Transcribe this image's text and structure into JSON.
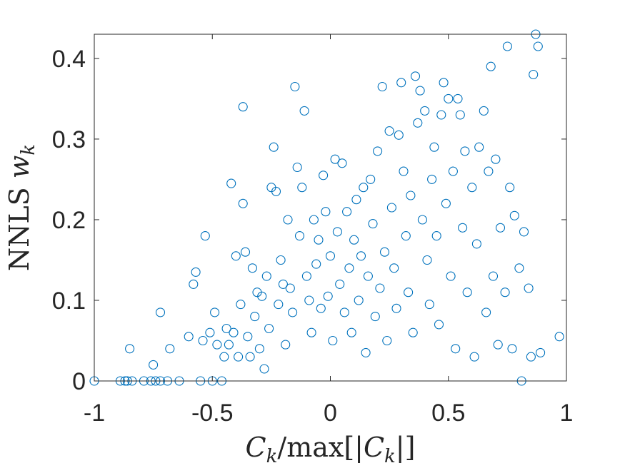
{
  "chart_data": {
    "type": "scatter",
    "title": "",
    "xlabel_parts": [
      "C",
      "k",
      "/max[|",
      "C",
      "k",
      "|]"
    ],
    "ylabel_parts": [
      "NNLS ",
      "w",
      "k"
    ],
    "xlim": [
      -1,
      1
    ],
    "ylim": [
      0,
      0.43
    ],
    "xticks": [
      -1,
      -0.5,
      0,
      0.5,
      1
    ],
    "xtick_labels": [
      "-1",
      "-0.5",
      "0",
      "0.5",
      "1"
    ],
    "yticks": [
      0,
      0.1,
      0.2,
      0.3,
      0.4
    ],
    "ytick_labels": [
      "0",
      "0.1",
      "0.2",
      "0.3",
      "0.4"
    ],
    "grid": false,
    "legend": "none",
    "marker": "open-circle",
    "marker_color": "#0072BD",
    "axis_color": "#262626",
    "series": [
      {
        "points": [
          [
            -1.0,
            0.0
          ],
          [
            -0.89,
            0.0
          ],
          [
            -0.87,
            0.0
          ],
          [
            -0.86,
            0.0
          ],
          [
            -0.85,
            0.04
          ],
          [
            -0.84,
            0.0
          ],
          [
            -0.79,
            0.0
          ],
          [
            -0.76,
            0.0
          ],
          [
            -0.75,
            0.02
          ],
          [
            -0.74,
            0.0
          ],
          [
            -0.72,
            0.0
          ],
          [
            -0.72,
            0.085
          ],
          [
            -0.69,
            0.0
          ],
          [
            -0.68,
            0.04
          ],
          [
            -0.64,
            0.0
          ],
          [
            -0.6,
            0.055
          ],
          [
            -0.58,
            0.12
          ],
          [
            -0.57,
            0.135
          ],
          [
            -0.55,
            0.0
          ],
          [
            -0.54,
            0.05
          ],
          [
            -0.53,
            0.18
          ],
          [
            -0.51,
            0.06
          ],
          [
            -0.5,
            0.0
          ],
          [
            -0.49,
            0.085
          ],
          [
            -0.48,
            0.045
          ],
          [
            -0.46,
            0.0
          ],
          [
            -0.45,
            0.03
          ],
          [
            -0.44,
            0.065
          ],
          [
            -0.43,
            0.045
          ],
          [
            -0.42,
            0.245
          ],
          [
            -0.41,
            0.06
          ],
          [
            -0.4,
            0.155
          ],
          [
            -0.39,
            0.03
          ],
          [
            -0.38,
            0.095
          ],
          [
            -0.37,
            0.34
          ],
          [
            -0.37,
            0.22
          ],
          [
            -0.36,
            0.16
          ],
          [
            -0.35,
            0.055
          ],
          [
            -0.34,
            0.03
          ],
          [
            -0.33,
            0.14
          ],
          [
            -0.32,
            0.08
          ],
          [
            -0.31,
            0.11
          ],
          [
            -0.3,
            0.04
          ],
          [
            -0.29,
            0.105
          ],
          [
            -0.28,
            0.015
          ],
          [
            -0.27,
            0.13
          ],
          [
            -0.26,
            0.065
          ],
          [
            -0.25,
            0.24
          ],
          [
            -0.24,
            0.29
          ],
          [
            -0.23,
            0.235
          ],
          [
            -0.22,
            0.095
          ],
          [
            -0.21,
            0.15
          ],
          [
            -0.2,
            0.12
          ],
          [
            -0.19,
            0.045
          ],
          [
            -0.18,
            0.2
          ],
          [
            -0.17,
            0.115
          ],
          [
            -0.16,
            0.085
          ],
          [
            -0.15,
            0.365
          ],
          [
            -0.14,
            0.265
          ],
          [
            -0.13,
            0.18
          ],
          [
            -0.12,
            0.24
          ],
          [
            -0.11,
            0.335
          ],
          [
            -0.1,
            0.13
          ],
          [
            -0.09,
            0.1
          ],
          [
            -0.08,
            0.06
          ],
          [
            -0.07,
            0.2
          ],
          [
            -0.06,
            0.145
          ],
          [
            -0.05,
            0.175
          ],
          [
            -0.04,
            0.09
          ],
          [
            -0.03,
            0.255
          ],
          [
            -0.02,
            0.21
          ],
          [
            -0.01,
            0.105
          ],
          [
            0.0,
            0.155
          ],
          [
            0.01,
            0.05
          ],
          [
            0.02,
            0.275
          ],
          [
            0.03,
            0.185
          ],
          [
            0.04,
            0.12
          ],
          [
            0.05,
            0.27
          ],
          [
            0.06,
            0.085
          ],
          [
            0.07,
            0.21
          ],
          [
            0.08,
            0.14
          ],
          [
            0.09,
            0.06
          ],
          [
            0.1,
            0.175
          ],
          [
            0.11,
            0.225
          ],
          [
            0.12,
            0.1
          ],
          [
            0.13,
            0.155
          ],
          [
            0.14,
            0.24
          ],
          [
            0.15,
            0.035
          ],
          [
            0.16,
            0.13
          ],
          [
            0.17,
            0.25
          ],
          [
            0.18,
            0.195
          ],
          [
            0.19,
            0.08
          ],
          [
            0.2,
            0.285
          ],
          [
            0.21,
            0.115
          ],
          [
            0.22,
            0.365
          ],
          [
            0.23,
            0.16
          ],
          [
            0.24,
            0.05
          ],
          [
            0.25,
            0.31
          ],
          [
            0.26,
            0.215
          ],
          [
            0.27,
            0.14
          ],
          [
            0.28,
            0.09
          ],
          [
            0.29,
            0.305
          ],
          [
            0.3,
            0.37
          ],
          [
            0.31,
            0.26
          ],
          [
            0.32,
            0.18
          ],
          [
            0.33,
            0.11
          ],
          [
            0.34,
            0.23
          ],
          [
            0.35,
            0.06
          ],
          [
            0.36,
            0.378
          ],
          [
            0.37,
            0.32
          ],
          [
            0.38,
            0.36
          ],
          [
            0.39,
            0.2
          ],
          [
            0.4,
            0.335
          ],
          [
            0.41,
            0.15
          ],
          [
            0.42,
            0.095
          ],
          [
            0.43,
            0.25
          ],
          [
            0.44,
            0.29
          ],
          [
            0.45,
            0.18
          ],
          [
            0.46,
            0.07
          ],
          [
            0.47,
            0.33
          ],
          [
            0.48,
            0.37
          ],
          [
            0.49,
            0.22
          ],
          [
            0.5,
            0.35
          ],
          [
            0.51,
            0.13
          ],
          [
            0.52,
            0.26
          ],
          [
            0.53,
            0.04
          ],
          [
            0.54,
            0.35
          ],
          [
            0.55,
            0.33
          ],
          [
            0.56,
            0.19
          ],
          [
            0.57,
            0.285
          ],
          [
            0.58,
            0.11
          ],
          [
            0.6,
            0.24
          ],
          [
            0.61,
            0.03
          ],
          [
            0.62,
            0.17
          ],
          [
            0.63,
            0.29
          ],
          [
            0.65,
            0.335
          ],
          [
            0.66,
            0.085
          ],
          [
            0.67,
            0.26
          ],
          [
            0.68,
            0.39
          ],
          [
            0.69,
            0.13
          ],
          [
            0.7,
            0.275
          ],
          [
            0.71,
            0.045
          ],
          [
            0.72,
            0.19
          ],
          [
            0.74,
            0.11
          ],
          [
            0.75,
            0.415
          ],
          [
            0.76,
            0.24
          ],
          [
            0.77,
            0.04
          ],
          [
            0.78,
            0.205
          ],
          [
            0.8,
            0.14
          ],
          [
            0.81,
            0.0
          ],
          [
            0.82,
            0.185
          ],
          [
            0.84,
            0.115
          ],
          [
            0.85,
            0.03
          ],
          [
            0.86,
            0.38
          ],
          [
            0.87,
            0.43
          ],
          [
            0.88,
            0.415
          ],
          [
            0.89,
            0.035
          ],
          [
            0.97,
            0.055
          ]
        ]
      }
    ]
  }
}
